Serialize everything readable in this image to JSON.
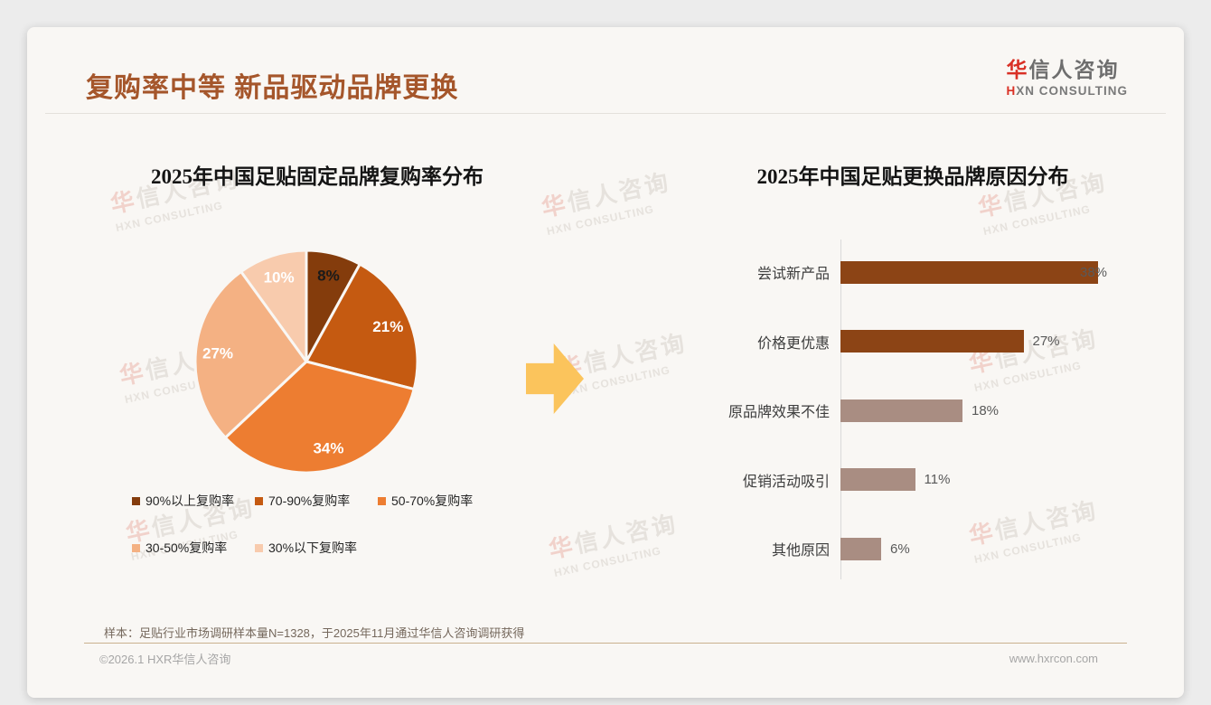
{
  "header": {
    "title": "复购率中等 新品驱动品牌更换",
    "logo": {
      "zh_first": "华",
      "zh_rest": "信人咨询",
      "en_first": "H",
      "en_rest": "XN CONSULTING"
    }
  },
  "watermark": {
    "line1_first": "华",
    "line1_rest": "信人咨询",
    "line2": "HXN CONSULTING"
  },
  "arrow": {
    "color": "#FBC45C"
  },
  "chart_data": [
    {
      "type": "pie",
      "title": "2025年中国足贴固定品牌复购率分布",
      "labels": [
        "90%以上复购率",
        "70-90%复购率",
        "50-70%复购率",
        "30-50%复购率",
        "30%以下复购率"
      ],
      "values": [
        8,
        21,
        34,
        27,
        10
      ],
      "value_labels": [
        "8%",
        "21%",
        "34%",
        "27%",
        "10%"
      ],
      "colors": [
        "#843C0C",
        "#C55A11",
        "#ED7D31",
        "#F4B183",
        "#F8CBAD"
      ],
      "slice_label_colors": [
        "#1A1A1A",
        "#FFFFFF",
        "#FFFFFF",
        "#FFFFFF",
        "#FFFFFF"
      ],
      "start_angle_deg": 0,
      "direction": "clockwise",
      "legend_position": "bottom"
    },
    {
      "type": "bar",
      "orientation": "horizontal",
      "title": "2025年中国足贴更换品牌原因分布",
      "categories": [
        "尝试新产品",
        "价格更优惠",
        "原品牌效果不佳",
        "促销活动吸引",
        "其他原因"
      ],
      "values": [
        38,
        27,
        18,
        11,
        6
      ],
      "value_labels": [
        "38%",
        "27%",
        "18%",
        "11%",
        "6%"
      ],
      "bar_colors": [
        "#8C4415",
        "#8C4415",
        "#A98D82",
        "#A98D82",
        "#A98D82"
      ],
      "xlim": [
        0,
        40
      ],
      "grid": false,
      "axis_color": "#D9D9D9",
      "value_label_color": "#595959"
    }
  ],
  "footnote": {
    "source": "样本：足贴行业市场调研样本量N=1328，于2025年11月通过华信人咨询调研获得"
  },
  "footer": {
    "copyright": "©2026.1 HXR华信人咨询",
    "website": "www.hxrcon.com"
  }
}
